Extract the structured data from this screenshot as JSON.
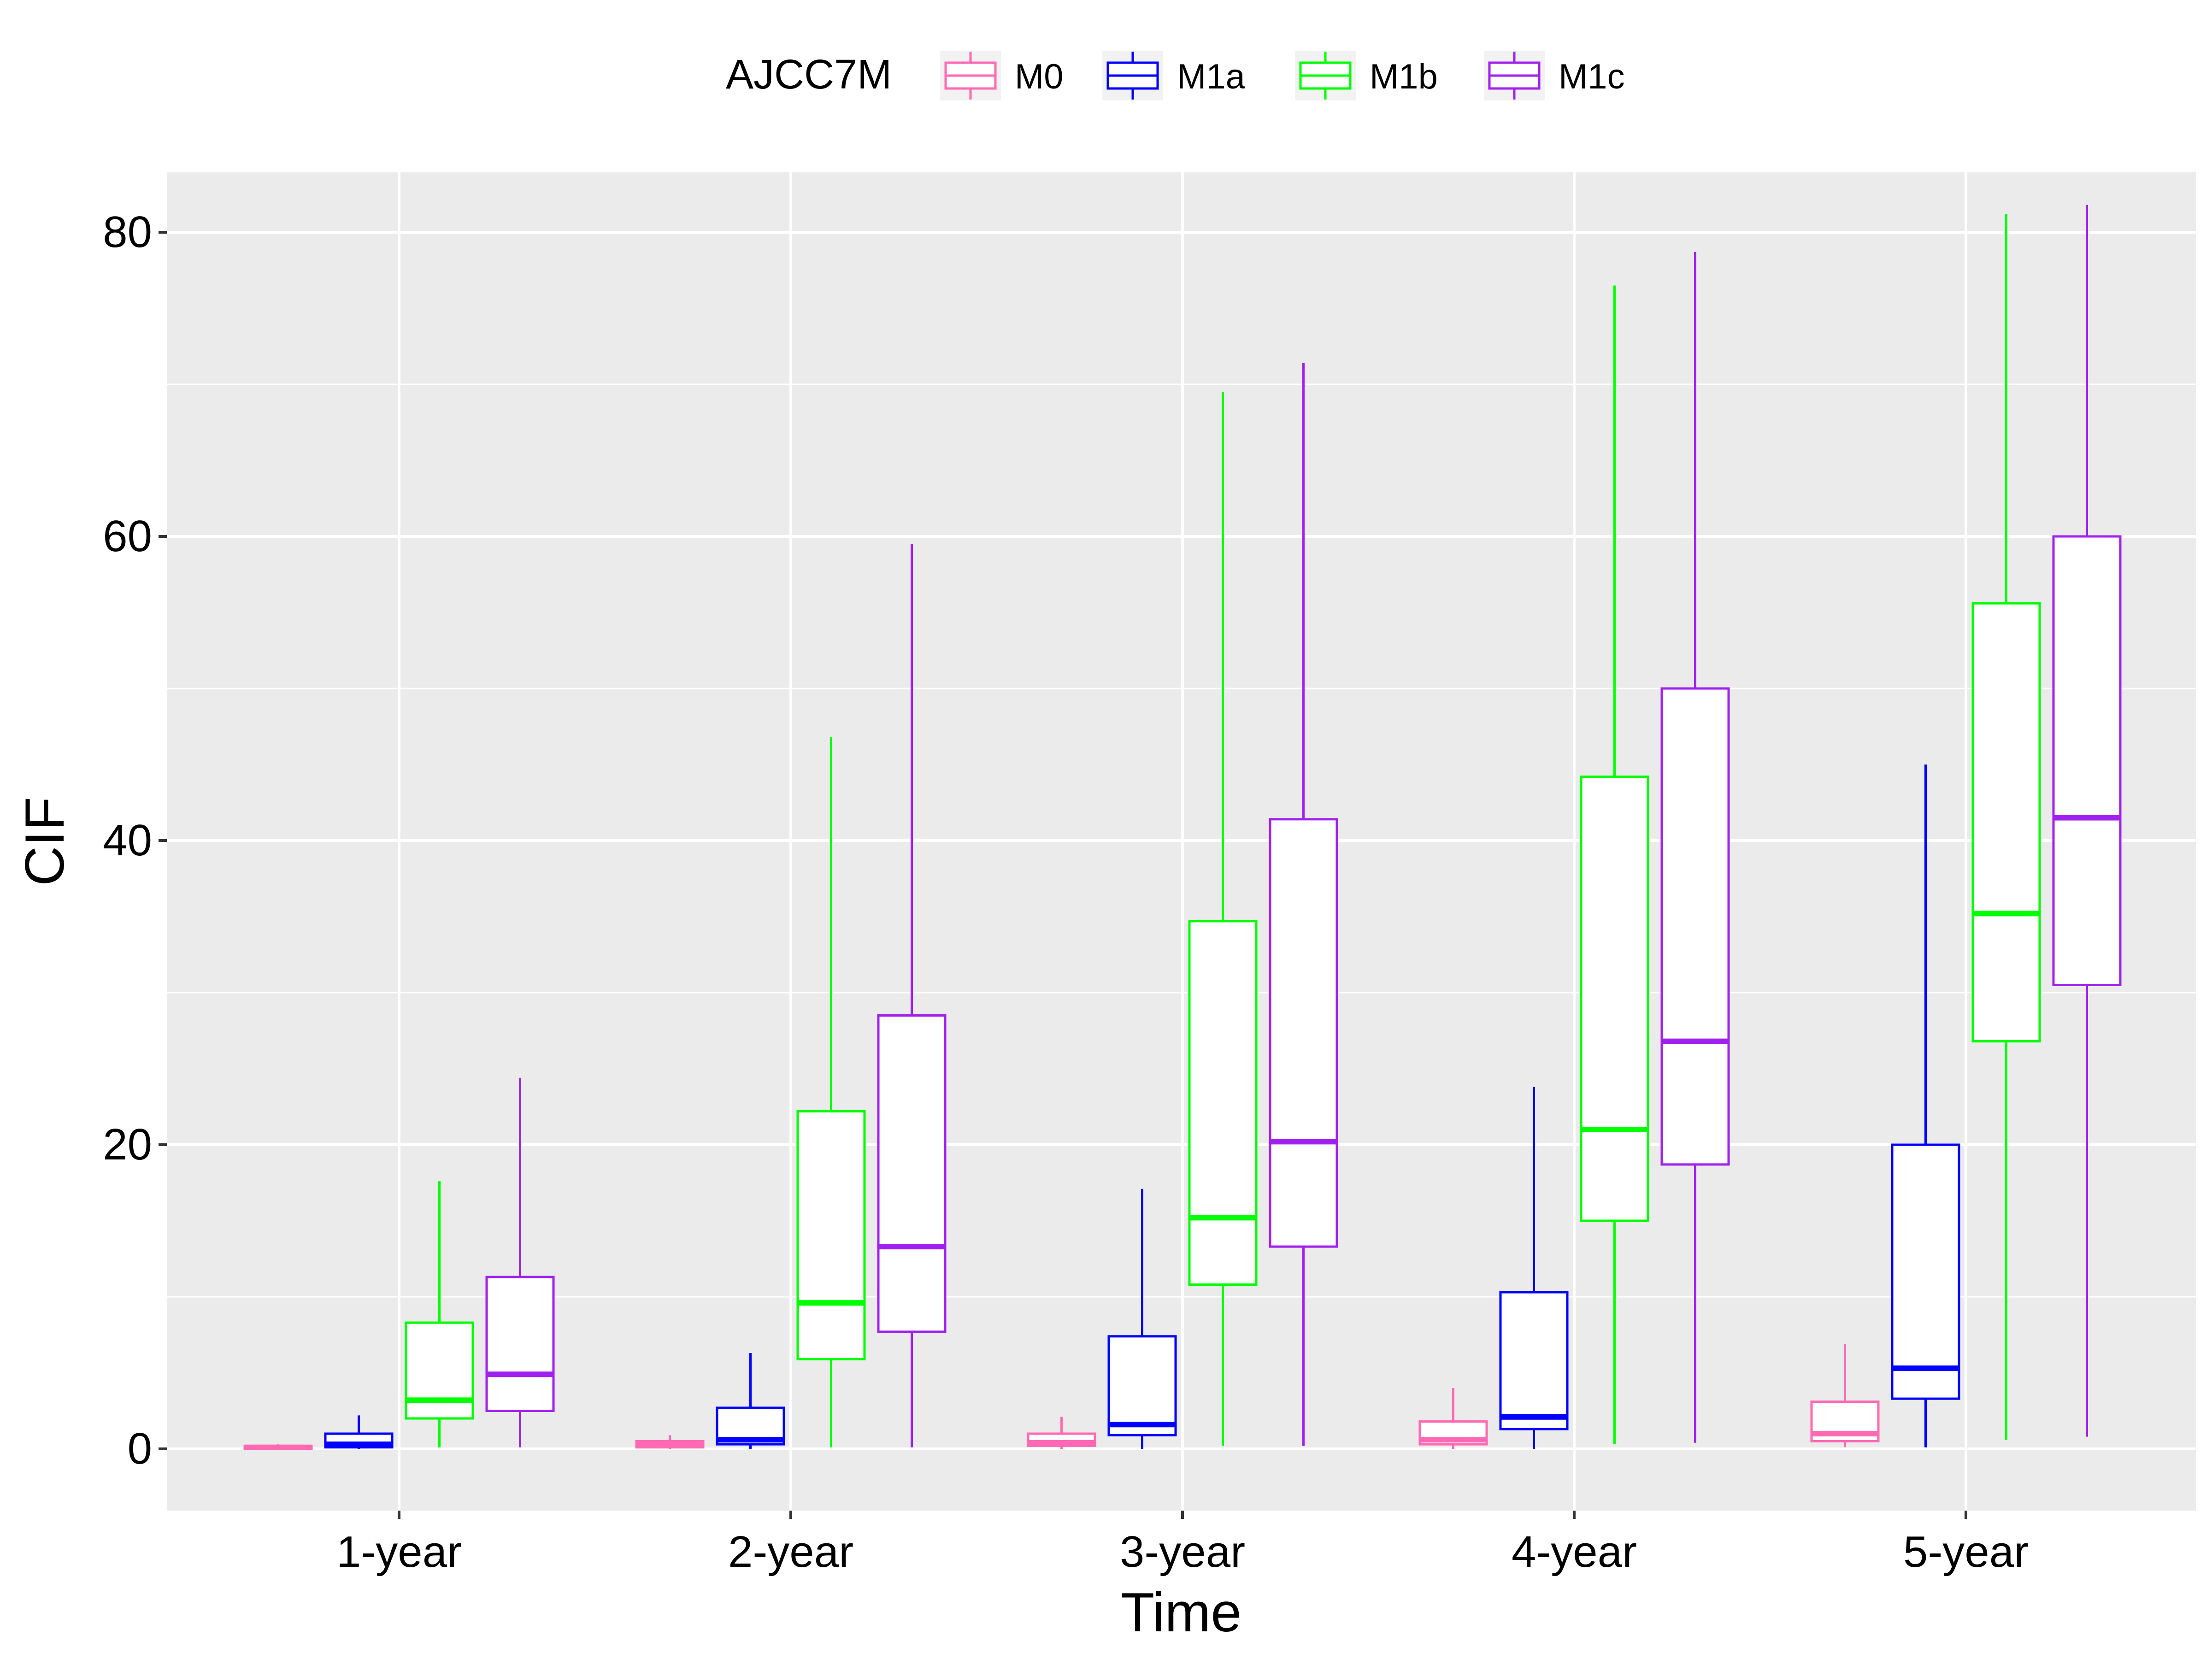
{
  "chart_data": {
    "type": "boxplot",
    "xlabel": "Time",
    "ylabel": "CIF",
    "ylim": [
      -10,
      84
    ],
    "y_ticks": [
      0,
      20,
      40,
      60,
      80
    ],
    "grid": true,
    "legend": {
      "title": "AJCC7M",
      "position": "top"
    },
    "categories": [
      "1-year",
      "2-year",
      "3-year",
      "4-year",
      "5-year"
    ],
    "series": [
      {
        "name": "M0",
        "color": "#FF69B4",
        "boxes": [
          {
            "min": 0.0,
            "q1": 0.0,
            "median": 0.1,
            "q3": 0.2,
            "max": 0.3
          },
          {
            "min": 0.0,
            "q1": 0.1,
            "median": 0.25,
            "q3": 0.5,
            "max": 0.9
          },
          {
            "min": 0.0,
            "q1": 0.2,
            "median": 0.4,
            "q3": 1.0,
            "max": 2.1
          },
          {
            "min": 0.0,
            "q1": 0.3,
            "median": 0.6,
            "q3": 1.8,
            "max": 4.0
          },
          {
            "min": 0.1,
            "q1": 0.5,
            "median": 1.0,
            "q3": 3.1,
            "max": 6.9
          }
        ]
      },
      {
        "name": "M1a",
        "color": "#0000FF",
        "boxes": [
          {
            "min": 0.0,
            "q1": 0.1,
            "median": 0.3,
            "q3": 1.0,
            "max": 2.2
          },
          {
            "min": 0.0,
            "q1": 0.3,
            "median": 0.6,
            "q3": 2.7,
            "max": 6.3
          },
          {
            "min": 0.0,
            "q1": 0.9,
            "median": 1.6,
            "q3": 7.4,
            "max": 17.1
          },
          {
            "min": 0.0,
            "q1": 1.3,
            "median": 2.1,
            "q3": 10.3,
            "max": 23.8
          },
          {
            "min": 0.1,
            "q1": 3.3,
            "median": 5.3,
            "q3": 20.0,
            "max": 45.0
          }
        ]
      },
      {
        "name": "M1b",
        "color": "#00FF00",
        "boxes": [
          {
            "min": 0.1,
            "q1": 2.0,
            "median": 3.2,
            "q3": 8.3,
            "max": 17.6
          },
          {
            "min": 0.1,
            "q1": 5.9,
            "median": 9.6,
            "q3": 22.2,
            "max": 46.8
          },
          {
            "min": 0.2,
            "q1": 10.8,
            "median": 15.2,
            "q3": 34.7,
            "max": 69.5
          },
          {
            "min": 0.3,
            "q1": 15.0,
            "median": 21.0,
            "q3": 44.2,
            "max": 76.5
          },
          {
            "min": 0.6,
            "q1": 26.8,
            "median": 35.2,
            "q3": 55.6,
            "max": 81.2
          }
        ]
      },
      {
        "name": "M1c",
        "color": "#A020F0",
        "boxes": [
          {
            "min": 0.1,
            "q1": 2.5,
            "median": 4.9,
            "q3": 11.3,
            "max": 24.4
          },
          {
            "min": 0.1,
            "q1": 7.7,
            "median": 13.3,
            "q3": 28.5,
            "max": 59.5
          },
          {
            "min": 0.2,
            "q1": 13.3,
            "median": 20.2,
            "q3": 41.4,
            "max": 71.4
          },
          {
            "min": 0.4,
            "q1": 18.7,
            "median": 26.8,
            "q3": 50.0,
            "max": 78.7
          },
          {
            "min": 0.8,
            "q1": 30.5,
            "median": 41.5,
            "q3": 60.0,
            "max": 81.8
          }
        ]
      }
    ]
  }
}
